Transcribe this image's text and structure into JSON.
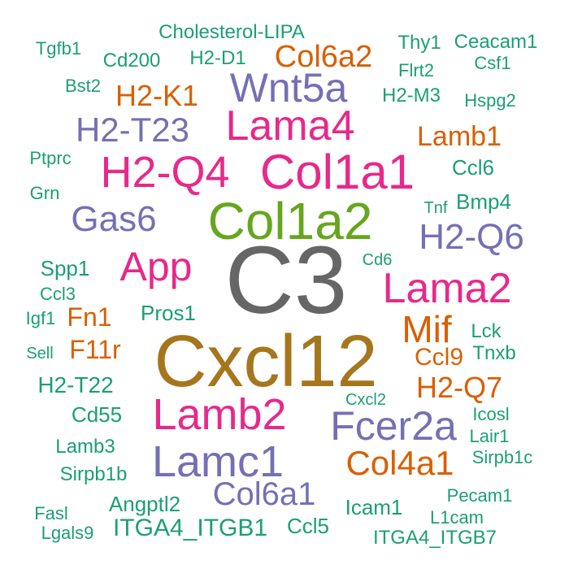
{
  "palette": {
    "green": "#1b9e77",
    "orange": "#d95f02",
    "purple": "#7570b3",
    "pink": "#e7298a",
    "lime": "#66a61e",
    "gold": "#a6761d",
    "gray": "#666666"
  },
  "words": [
    {
      "text": "C3",
      "color": "gray"
    },
    {
      "text": "Cxcl12",
      "color": "gold"
    },
    {
      "text": "Col1a2",
      "color": "lime"
    },
    {
      "text": "Col1a1",
      "color": "pink"
    },
    {
      "text": "H2-Q4",
      "color": "pink"
    },
    {
      "text": "Lama4",
      "color": "pink"
    },
    {
      "text": "Lama2",
      "color": "pink"
    },
    {
      "text": "Lamb2",
      "color": "pink"
    },
    {
      "text": "App",
      "color": "pink"
    },
    {
      "text": "Lamc1",
      "color": "purple"
    },
    {
      "text": "Fcer2a",
      "color": "purple"
    },
    {
      "text": "Wnt5a",
      "color": "purple"
    },
    {
      "text": "Gas6",
      "color": "purple"
    },
    {
      "text": "H2-T23",
      "color": "purple"
    },
    {
      "text": "H2-Q6",
      "color": "purple"
    },
    {
      "text": "Col6a1",
      "color": "purple"
    },
    {
      "text": "Mif",
      "color": "orange"
    },
    {
      "text": "Col4a1",
      "color": "orange"
    },
    {
      "text": "H2-Q7",
      "color": "orange"
    },
    {
      "text": "Col6a2",
      "color": "orange"
    },
    {
      "text": "H2-K1",
      "color": "orange"
    },
    {
      "text": "Lamb1",
      "color": "orange"
    },
    {
      "text": "Fn1",
      "color": "orange"
    },
    {
      "text": "F11r",
      "color": "orange"
    },
    {
      "text": "Ccl9",
      "color": "orange"
    },
    {
      "text": "Cholesterol-LIPA",
      "color": "green"
    },
    {
      "text": "Tgfb1",
      "color": "green"
    },
    {
      "text": "Cd200",
      "color": "green"
    },
    {
      "text": "H2-D1",
      "color": "green"
    },
    {
      "text": "Thy1",
      "color": "green"
    },
    {
      "text": "Ceacam1",
      "color": "green"
    },
    {
      "text": "Flrt2",
      "color": "green"
    },
    {
      "text": "Csf1",
      "color": "green"
    },
    {
      "text": "Bst2",
      "color": "green"
    },
    {
      "text": "H2-M3",
      "color": "green"
    },
    {
      "text": "Hspg2",
      "color": "green"
    },
    {
      "text": "Ptprc",
      "color": "green"
    },
    {
      "text": "Ccl6",
      "color": "green"
    },
    {
      "text": "Grn",
      "color": "green"
    },
    {
      "text": "Bmp4",
      "color": "green"
    },
    {
      "text": "Tnf",
      "color": "green"
    },
    {
      "text": "Spp1",
      "color": "green"
    },
    {
      "text": "Cd6",
      "color": "green"
    },
    {
      "text": "Ccl3",
      "color": "green"
    },
    {
      "text": "Igf1",
      "color": "green"
    },
    {
      "text": "Pros1",
      "color": "green"
    },
    {
      "text": "Lck",
      "color": "green"
    },
    {
      "text": "Sell",
      "color": "green"
    },
    {
      "text": "Tnxb",
      "color": "green"
    },
    {
      "text": "H2-T22",
      "color": "green"
    },
    {
      "text": "Cxcl2",
      "color": "green"
    },
    {
      "text": "Cd55",
      "color": "green"
    },
    {
      "text": "Icosl",
      "color": "green"
    },
    {
      "text": "Lair1",
      "color": "green"
    },
    {
      "text": "Lamb3",
      "color": "green"
    },
    {
      "text": "Sirpb1c",
      "color": "green"
    },
    {
      "text": "Sirpb1b",
      "color": "green"
    },
    {
      "text": "Angptl2",
      "color": "green"
    },
    {
      "text": "Pecam1",
      "color": "green"
    },
    {
      "text": "Fasl",
      "color": "green"
    },
    {
      "text": "Icam1",
      "color": "green"
    },
    {
      "text": "L1cam",
      "color": "green"
    },
    {
      "text": "Lgals9",
      "color": "green"
    },
    {
      "text": "ITGA4_ITGB1",
      "color": "green"
    },
    {
      "text": "Ccl5",
      "color": "green"
    },
    {
      "text": "ITGA4_ITGB7",
      "color": "green"
    }
  ]
}
